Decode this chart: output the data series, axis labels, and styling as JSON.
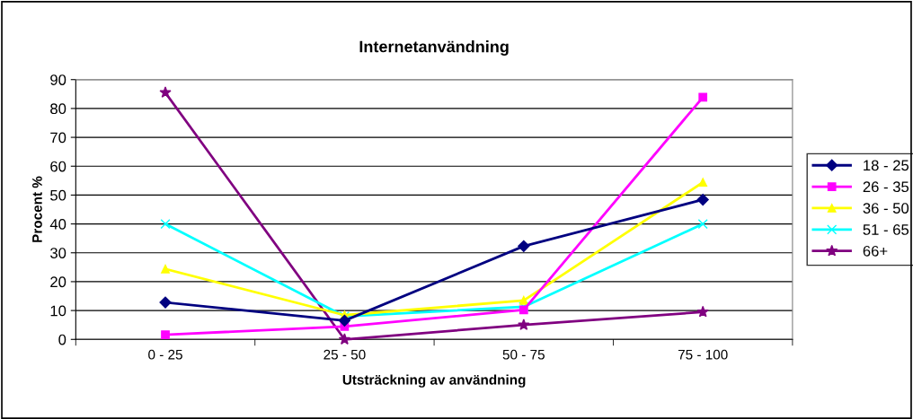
{
  "chart_data": {
    "type": "line",
    "title": "Internetanvändning",
    "xlabel": "Utsträckning av användning",
    "ylabel": "Procent %",
    "categories": [
      "0 - 25",
      "25 - 50",
      "50 - 75",
      "75 - 100"
    ],
    "series": [
      {
        "name": "18 - 25",
        "color": "#000080",
        "marker": "diamond",
        "values": [
          12.8,
          6.5,
          32.3,
          48.4
        ]
      },
      {
        "name": "26 - 35",
        "color": "#ff00ff",
        "marker": "square",
        "values": [
          1.6,
          4.5,
          10.2,
          83.9
        ]
      },
      {
        "name": "36 - 50",
        "color": "#ffff00",
        "marker": "triangle",
        "values": [
          24.4,
          8.4,
          13.5,
          54.4
        ]
      },
      {
        "name": "51 - 65",
        "color": "#00ffff",
        "marker": "cross",
        "values": [
          40,
          8,
          11.3,
          40
        ]
      },
      {
        "name": "66+",
        "color": "#800080",
        "marker": "star",
        "values": [
          85.5,
          0,
          5,
          9.5
        ]
      }
    ],
    "ylim": [
      0,
      90
    ],
    "yticks": [
      0,
      10,
      20,
      30,
      40,
      50,
      60,
      70,
      80,
      90
    ],
    "grid": "y",
    "legend": "right",
    "line_style": "solid"
  }
}
